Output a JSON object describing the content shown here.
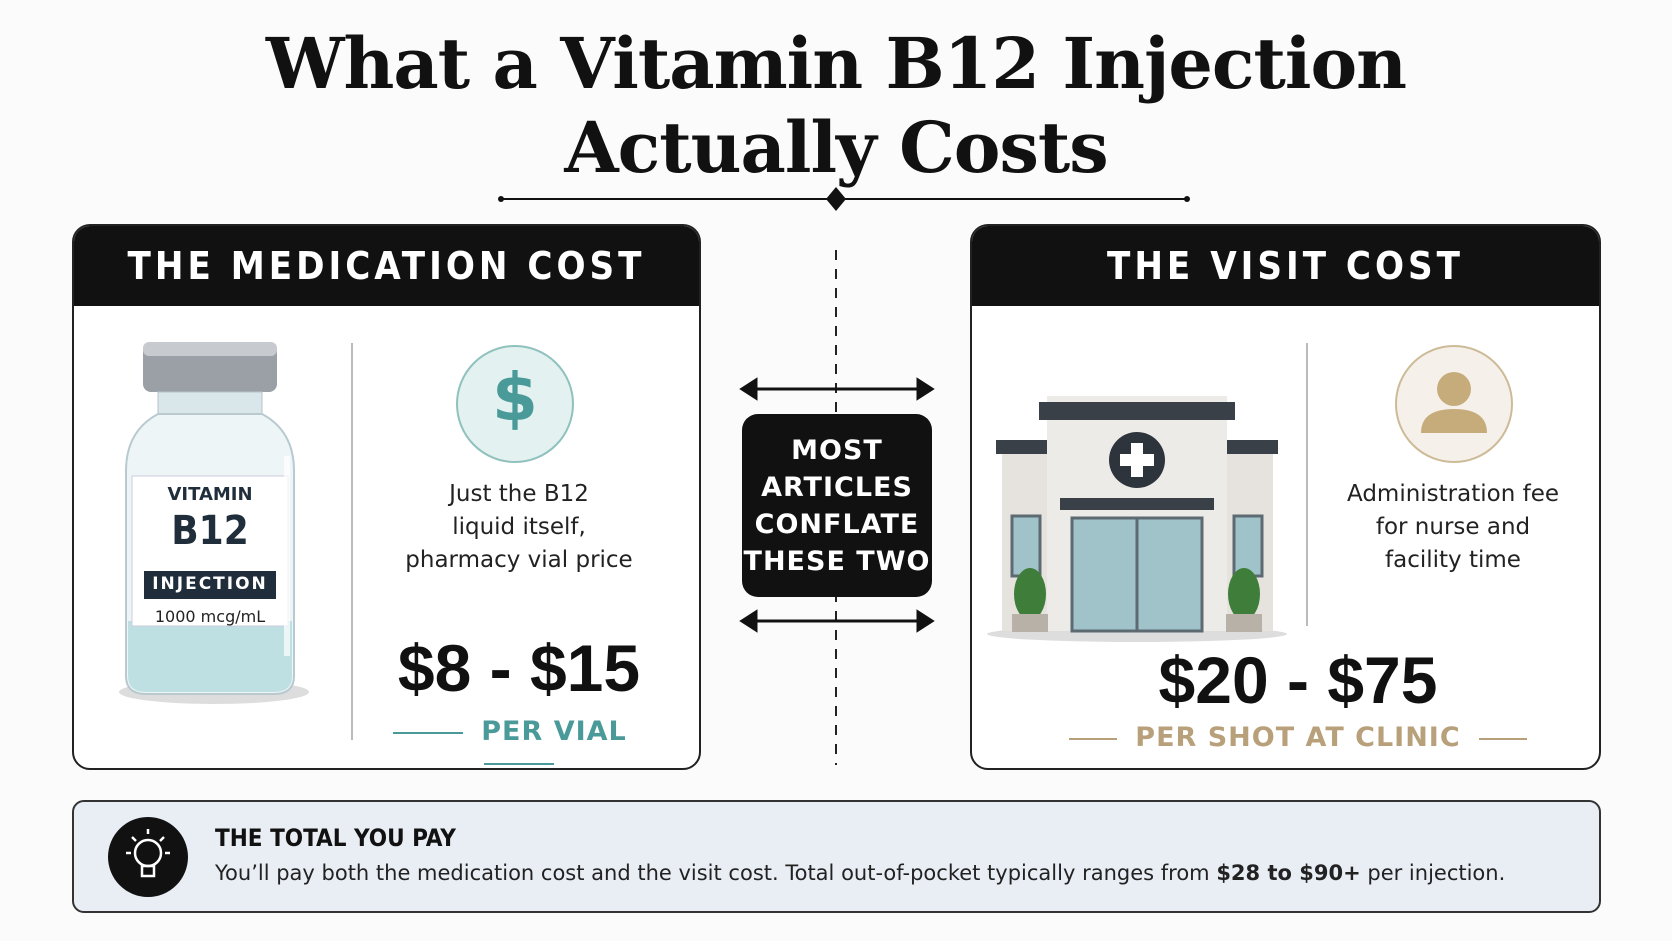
{
  "title": {
    "lines": [
      "What a Vitamin B12 Injection",
      "Actually Costs"
    ]
  },
  "medication": {
    "header": "THE MEDICATION COST",
    "vial_label": {
      "line1": "VITAMIN",
      "line2": "B12",
      "line3": "INJECTION",
      "line4": "1000 mcg/mL"
    },
    "icon": "$",
    "description": [
      "Just the B12",
      "liquid itself,",
      "pharmacy vial price"
    ],
    "price": "$8 - $15",
    "unit": "PER VIAL"
  },
  "center_note": [
    "MOST",
    "ARTICLES",
    "CONFLATE",
    "THESE TWO"
  ],
  "visit": {
    "header": "THE VISIT COST",
    "description": [
      "Administration fee",
      "for nurse and",
      "facility time"
    ],
    "price": "$20 - $75",
    "unit": "PER SHOT AT CLINIC"
  },
  "total": {
    "heading": "THE TOTAL YOU PAY",
    "text_before": "You’ll pay both the medication cost and the visit cost. Total out-of-pocket typically ranges from",
    "text_bold": "$28 to $90+",
    "text_after": "per injection."
  }
}
